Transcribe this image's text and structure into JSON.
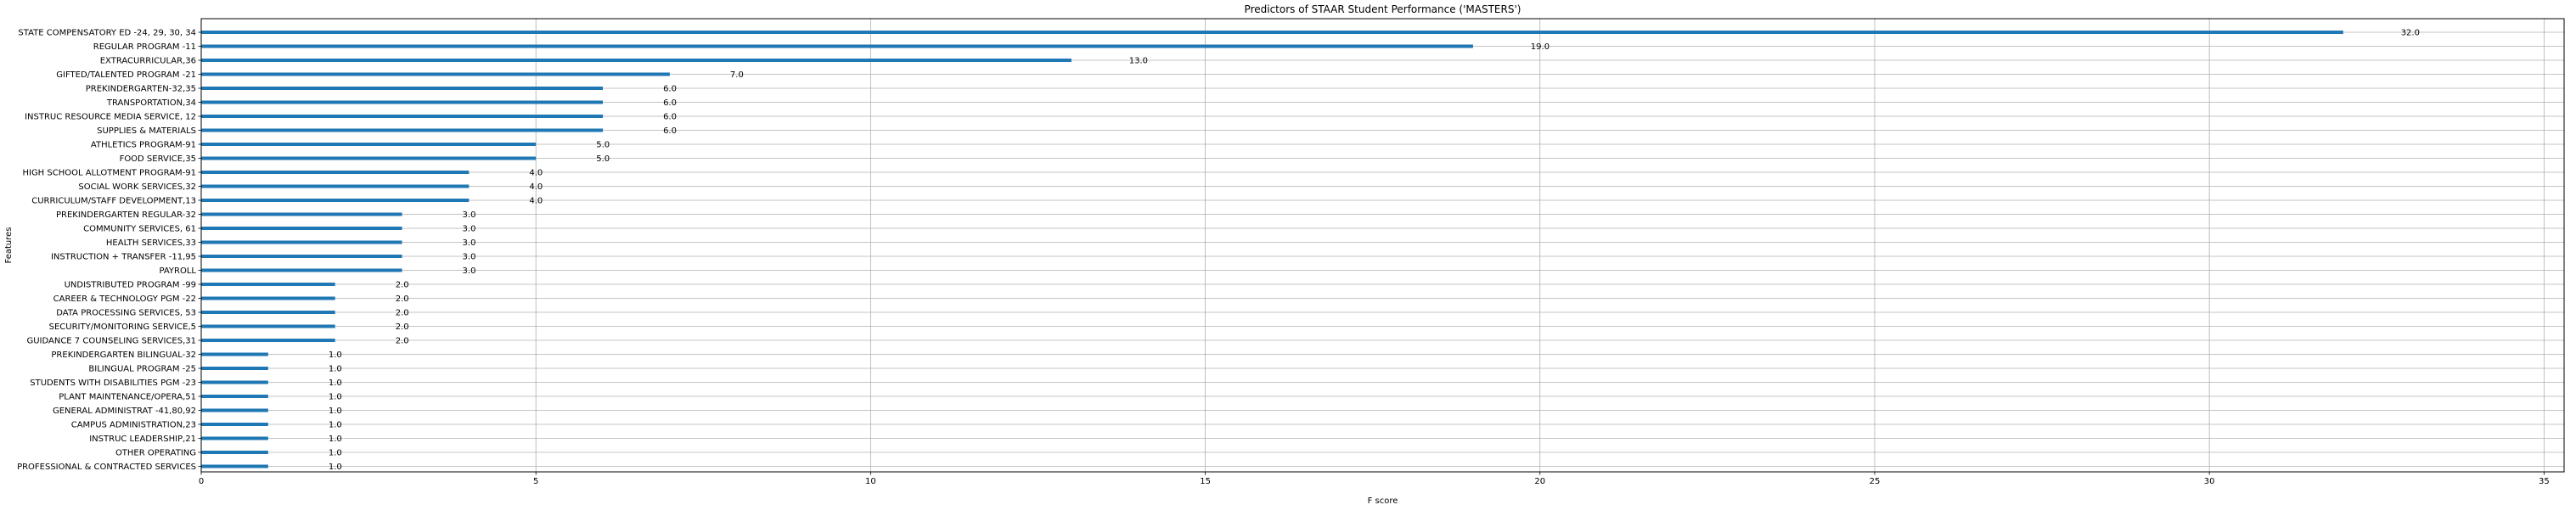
{
  "chart_data": {
    "type": "bar",
    "orientation": "horizontal",
    "title": "Predictors of STAAR Student Performance ('MASTERS')",
    "xlabel": "F score",
    "ylabel": "Features",
    "xlim": [
      0,
      35.3
    ],
    "xticks": [
      0,
      5,
      10,
      15,
      20,
      25,
      30,
      35
    ],
    "grid": true,
    "bar_color": "#1f77b4",
    "categories": [
      "STATE COMPENSATORY ED -24, 29, 30, 34",
      "REGULAR PROGRAM -11",
      "EXTRACURRICULAR,36",
      "GIFTED/TALENTED PROGRAM -21",
      "PREKINDERGARTEN-32,35",
      "TRANSPORTATION,34",
      "INSTRUC RESOURCE MEDIA SERVICE, 12",
      "SUPPLIES & MATERIALS",
      "ATHLETICS PROGRAM-91",
      "FOOD SERVICE,35",
      "HIGH SCHOOL ALLOTMENT PROGRAM-91",
      "SOCIAL WORK SERVICES,32",
      "CURRICULUM/STAFF DEVELOPMENT,13",
      "PREKINDERGARTEN  REGULAR-32",
      "COMMUNITY SERVICES, 61",
      "HEALTH SERVICES,33",
      "INSTRUCTION + TRANSFER -11,95",
      "PAYROLL",
      "UNDISTRIBUTED PROGRAM -99",
      "CAREER & TECHNOLOGY PGM -22",
      "DATA PROCESSING SERVICES, 53",
      "SECURITY/MONITORING SERVICE,5",
      "GUIDANCE 7 COUNSELING SERVICES,31",
      "PREKINDERGARTEN  BILINGUAL-32",
      "BILINGUAL PROGRAM -25",
      "STUDENTS WITH DISABILITIES PGM -23",
      "PLANT MAINTENANCE/OPERA,51",
      "GENERAL ADMINISTRAT -41,80,92",
      "CAMPUS ADMINISTRATION,23",
      "INSTRUC LEADERSHIP,21",
      "OTHER OPERATING",
      "PROFESSIONAL & CONTRACTED SERVICES"
    ],
    "values": [
      32,
      19,
      13,
      7,
      6,
      6,
      6,
      6,
      5,
      5,
      4,
      4,
      4,
      3,
      3,
      3,
      3,
      3,
      2,
      2,
      2,
      2,
      2,
      1,
      1,
      1,
      1,
      1,
      1,
      1,
      1,
      1
    ],
    "data_labels": [
      "32.0",
      "19.0",
      "13.0",
      "7.0",
      "6.0",
      "6.0",
      "6.0",
      "6.0",
      "5.0",
      "5.0",
      "4.0",
      "4.0",
      "4.0",
      "3.0",
      "3.0",
      "3.0",
      "3.0",
      "3.0",
      "2.0",
      "2.0",
      "2.0",
      "2.0",
      "2.0",
      "1.0",
      "1.0",
      "1.0",
      "1.0",
      "1.0",
      "1.0",
      "1.0",
      "1.0",
      "1.0"
    ]
  }
}
